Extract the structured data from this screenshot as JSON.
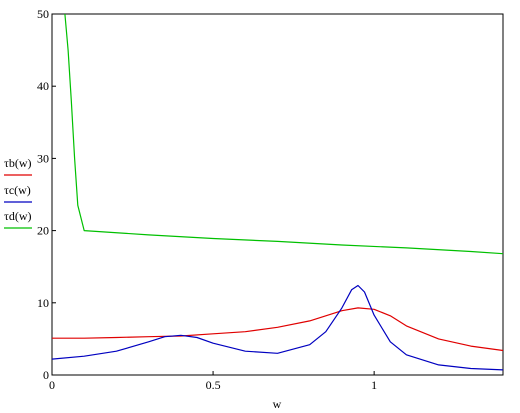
{
  "chart_data": {
    "type": "line",
    "xlabel": "w",
    "ylabel": "",
    "xlim": [
      0,
      1.4
    ],
    "ylim": [
      0,
      50
    ],
    "x_ticks": [
      0,
      0.5,
      1
    ],
    "x_tick_labels": [
      "0",
      "0.5",
      "1"
    ],
    "y_ticks": [
      0,
      10,
      20,
      30,
      40,
      50
    ],
    "y_tick_labels": [
      "0",
      "10",
      "20",
      "30",
      "40",
      "50"
    ],
    "grid": false,
    "legend_placement": "left",
    "series": [
      {
        "name": "τb(w)",
        "color": "#e00000",
        "x": [
          0,
          0.1,
          0.2,
          0.3,
          0.4,
          0.5,
          0.6,
          0.7,
          0.8,
          0.85,
          0.9,
          0.95,
          1.0,
          1.05,
          1.1,
          1.2,
          1.3,
          1.4
        ],
        "y": [
          5.1,
          5.1,
          5.2,
          5.3,
          5.4,
          5.7,
          6.0,
          6.6,
          7.5,
          8.2,
          8.9,
          9.3,
          9.1,
          8.2,
          6.8,
          5.0,
          4.0,
          3.4
        ]
      },
      {
        "name": "τc(w)",
        "color": "#0000c0",
        "x": [
          0,
          0.1,
          0.2,
          0.3,
          0.35,
          0.4,
          0.45,
          0.5,
          0.6,
          0.7,
          0.8,
          0.85,
          0.9,
          0.93,
          0.95,
          0.97,
          1.0,
          1.05,
          1.1,
          1.2,
          1.3,
          1.4
        ],
        "y": [
          2.2,
          2.6,
          3.3,
          4.6,
          5.3,
          5.5,
          5.2,
          4.4,
          3.3,
          3.0,
          4.2,
          6.0,
          9.3,
          11.8,
          12.4,
          11.5,
          8.3,
          4.6,
          2.8,
          1.4,
          0.9,
          0.7
        ]
      },
      {
        "name": "τd(w)",
        "color": "#00c000",
        "x": [
          0.04,
          0.05,
          0.06,
          0.07,
          0.08,
          0.1,
          0.3,
          0.5,
          0.7,
          0.9,
          1.1,
          1.3,
          1.4
        ],
        "y": [
          50,
          45,
          38,
          30,
          23.5,
          20,
          19.4,
          18.9,
          18.5,
          18.0,
          17.6,
          17.1,
          16.8
        ]
      }
    ]
  }
}
